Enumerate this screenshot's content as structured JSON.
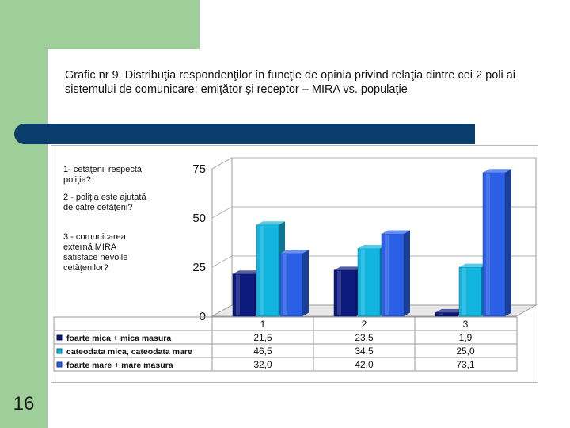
{
  "slide": {
    "number": "16",
    "title": "Grafic nr 9. Distribuţia respondenţilor în funcţie de opinia privind relaţia dintre cei 2 poli ai sistemului de comunicare: emiţător şi receptor – MIRA vs.  populaţie"
  },
  "notes": [
    "1- cetăţenii respectă poliţia?",
    "2 - poliţia este ajutată de către cetăţeni?",
    "3 - comunicarea externă MIRA satisface nevoile cetăţenilor?"
  ],
  "chart_data": {
    "type": "bar",
    "categories": [
      "1",
      "2",
      "3"
    ],
    "series": [
      {
        "name": "foarte mica + mica masura",
        "values": [
          21.5,
          23.5,
          1.9
        ],
        "labels": [
          "21,5",
          "23,5",
          "1,9"
        ],
        "color": "#0b1a7c"
      },
      {
        "name": "cateodata mica, cateodata mare",
        "values": [
          46.5,
          34.5,
          25.0
        ],
        "labels": [
          "46,5",
          "34,5",
          "25,0"
        ],
        "color": "#12b5e0"
      },
      {
        "name": "foarte mare + mare masura",
        "values": [
          32.0,
          42.0,
          73.1
        ],
        "labels": [
          "32,0",
          "42,0",
          "73,1"
        ],
        "color": "#2a5fe6"
      }
    ],
    "yticks": [
      "0",
      "25",
      "50",
      "75"
    ],
    "ylim": [
      0,
      75
    ],
    "grid": true,
    "legend": "data-table-below"
  }
}
